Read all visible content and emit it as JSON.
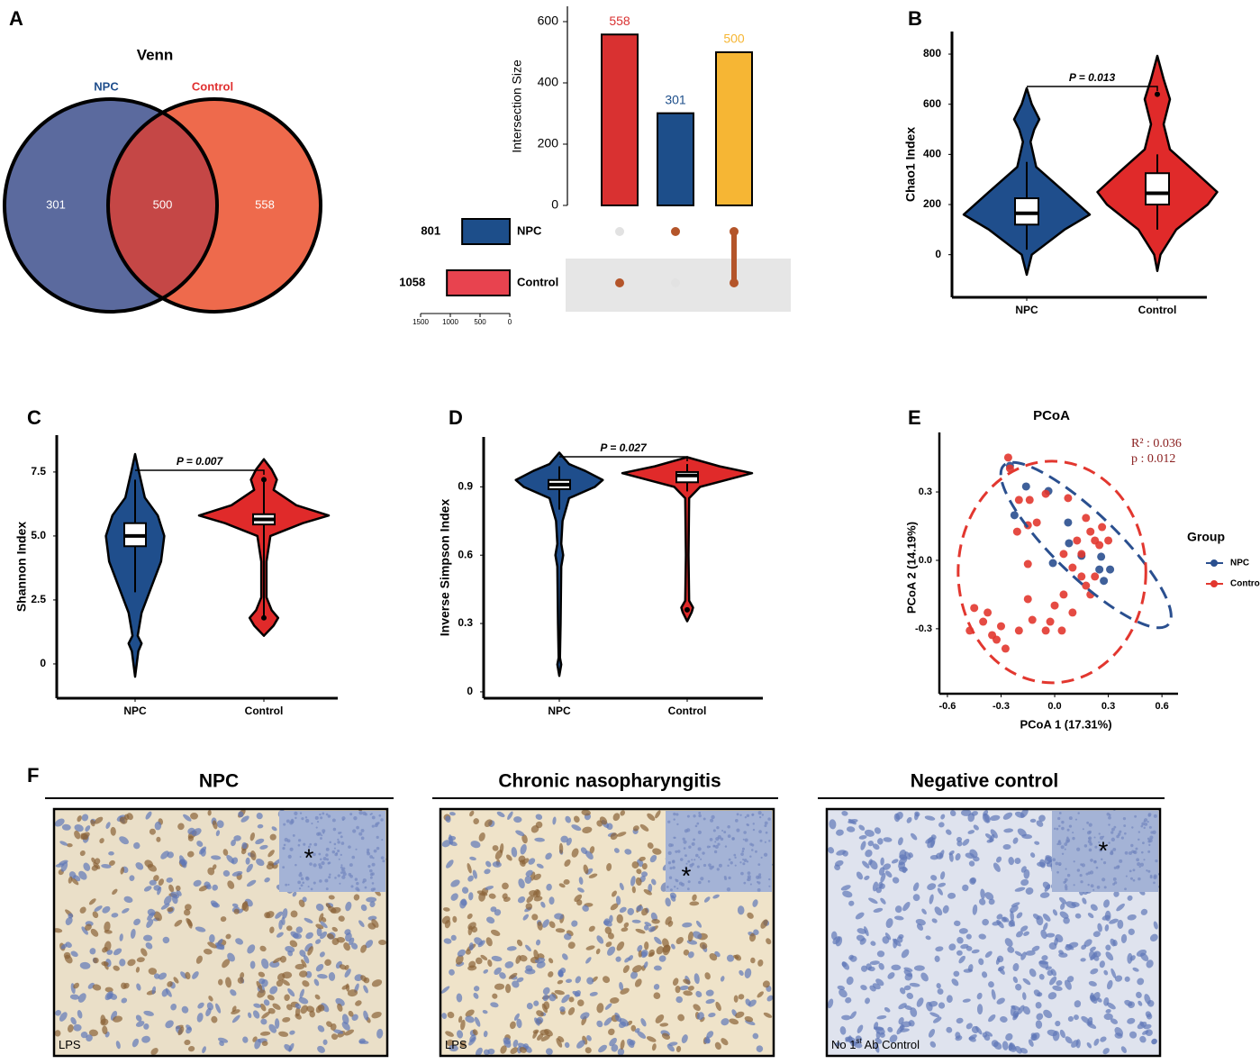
{
  "panel_labels": [
    "A",
    "B",
    "C",
    "D",
    "E",
    "F"
  ],
  "chart_data": [
    {
      "type": "venn",
      "title": "Venn",
      "sets": [
        {
          "name": "NPC",
          "color": "#5b6a9e",
          "label_color": "#1f4e8c",
          "only": 301
        },
        {
          "name": "Control",
          "color": "#ee6a4c",
          "label_color": "#e03030",
          "only": 558
        }
      ],
      "intersection": 500,
      "intersection_color": "#c54746"
    },
    {
      "type": "upset",
      "ylabel": "Intersection Size",
      "ylim": [
        0,
        650
      ],
      "yticks": [
        0,
        200,
        400,
        600
      ],
      "values": [
        558,
        301,
        500
      ],
      "colors": [
        "#d93131",
        "#1d4e8a",
        "#f6b634"
      ],
      "sets": [
        {
          "name": "NPC",
          "size": 801,
          "color": "#1d4e8a"
        },
        {
          "name": "Control",
          "size": 1058,
          "color": "#e8434f"
        }
      ],
      "matrix": [
        [
          false,
          true
        ],
        [
          true,
          false
        ],
        [
          true,
          true
        ]
      ],
      "dot_color": "#b4552a",
      "inactive_color": "#e2e2e2",
      "set_xlim": [
        1500,
        0
      ],
      "set_xticks": [
        1500,
        1000,
        500,
        0
      ]
    },
    {
      "type": "violin",
      "ylabel": "Chao1 Index",
      "ylim": [
        -170,
        890
      ],
      "yticks": [
        0,
        200,
        400,
        600,
        800
      ],
      "annotation": "P = 0.013",
      "groups": [
        {
          "name": "NPC",
          "color": "#1f4e8c",
          "density_y": [
            -80,
            0,
            100,
            160,
            250,
            350,
            450,
            500,
            540,
            600,
            664
          ],
          "density_w": [
            0,
            0.08,
            0.6,
            1,
            0.6,
            0.15,
            0.06,
            0.12,
            0.2,
            0.08,
            0
          ],
          "box": {
            "whisker_low": 20,
            "q1": 120,
            "median": 165,
            "q3": 225,
            "whisker_high": 370
          },
          "outliers": []
        },
        {
          "name": "Control",
          "color": "#e02a2a",
          "density_y": [
            -65,
            0,
            100,
            200,
            250,
            330,
            420,
            520,
            620,
            700,
            793
          ],
          "density_w": [
            0,
            0.05,
            0.3,
            0.8,
            0.95,
            0.6,
            0.2,
            0.1,
            0.2,
            0.1,
            0
          ],
          "box": {
            "whisker_low": 100,
            "q1": 200,
            "median": 245,
            "q3": 325,
            "whisker_high": 400
          },
          "outliers": [
            640
          ]
        }
      ]
    },
    {
      "type": "violin",
      "ylabel": "Shannon Index",
      "ylim": [
        -1.34,
        8.94
      ],
      "yticks": [
        0,
        2.5,
        {
          "value": 5,
          "label": "5.0"
        },
        7.5
      ],
      "annotation": "P = 0.007",
      "groups": [
        {
          "name": "NPC",
          "color": "#1f4e8c",
          "density_y": [
            -0.5,
            0.5,
            0.8,
            1.1,
            2,
            3,
            4,
            5,
            5.8,
            6.5,
            7.5,
            8.2
          ],
          "density_w": [
            0,
            0.05,
            0.1,
            0.04,
            0.1,
            0.25,
            0.4,
            0.45,
            0.35,
            0.15,
            0.06,
            0
          ],
          "box": {
            "whisker_low": 2.8,
            "q1": 4.6,
            "median": 5.0,
            "q3": 5.5,
            "whisker_high": 7.2
          },
          "outliers": []
        },
        {
          "name": "Control",
          "color": "#e02a2a",
          "density_y": [
            1.1,
            1.5,
            1.8,
            2.1,
            2.6,
            4,
            5,
            5.5,
            5.8,
            6.2,
            6.8,
            7.2,
            7.6,
            8.0
          ],
          "density_w": [
            0,
            0.15,
            0.22,
            0.12,
            0.04,
            0.04,
            0.1,
            0.6,
            1,
            0.5,
            0.15,
            0.2,
            0.12,
            0
          ],
          "box": {
            "whisker_low": 1.8,
            "q1": 5.45,
            "median": 5.65,
            "q3": 5.85,
            "whisker_high": 7.2
          },
          "outliers": [
            1.8,
            7.2
          ]
        }
      ]
    },
    {
      "type": "violin",
      "ylabel": "Inverse Simpson Index",
      "ylim": [
        -0.028,
        1.119
      ],
      "yticks": [
        0,
        0.3,
        0.6,
        0.9
      ],
      "annotation": "P = 0.027",
      "groups": [
        {
          "name": "NPC",
          "color": "#1f4e8c",
          "density_y": [
            0.07,
            0.12,
            0.15,
            0.3,
            0.55,
            0.6,
            0.65,
            0.75,
            0.85,
            0.9,
            0.93,
            0.97,
            1.0,
            1.05
          ],
          "density_w": [
            0,
            0.03,
            0.01,
            0.02,
            0.03,
            0.06,
            0.03,
            0.05,
            0.15,
            0.55,
            0.67,
            0.4,
            0.15,
            0
          ],
          "box": {
            "whisker_low": 0.8,
            "q1": 0.89,
            "median": 0.91,
            "q3": 0.93,
            "whisker_high": 0.99
          },
          "outliers": []
        },
        {
          "name": "Control",
          "color": "#e02a2a",
          "density_y": [
            0.31,
            0.35,
            0.37,
            0.4,
            0.6,
            0.85,
            0.9,
            0.93,
            0.96,
            0.99,
            1.03
          ],
          "density_w": [
            0,
            0.07,
            0.09,
            0.03,
            0.02,
            0.03,
            0.2,
            0.6,
            1,
            0.5,
            0
          ],
          "box": {
            "whisker_low": 0.88,
            "q1": 0.92,
            "median": 0.95,
            "q3": 0.965,
            "whisker_high": 1.0
          },
          "outliers": [
            0.36
          ]
        }
      ]
    },
    {
      "type": "scatter",
      "title": "PCoA",
      "xlabel": "PCoA 1 (17.31%)",
      "ylabel": "PCoA 2 (14.19%)",
      "xlim": [
        -0.645,
        0.69
      ],
      "ylim": [
        -0.585,
        0.561
      ],
      "xticks": [
        -0.6,
        -0.3,
        {
          "value": 0,
          "label": "0.0"
        },
        0.3,
        0.6
      ],
      "yticks": [
        -0.3,
        {
          "value": 0,
          "label": "0.0"
        },
        0.3
      ],
      "legend_title": "Group",
      "legend": "right",
      "annotations": [
        "R² : 0.036",
        "p : 0.012"
      ],
      "series": [
        {
          "name": "NPC",
          "color": "#2a4f8f",
          "x": [
            -0.25,
            -0.225,
            -0.16,
            -0.035,
            -0.01,
            0.08,
            0.15,
            0.26,
            0.275,
            0.25,
            0.31,
            0.075
          ],
          "y": [
            0.415,
            0.198,
            0.324,
            0.304,
            -0.012,
            0.075,
            0.02,
            0.016,
            -0.09,
            -0.04,
            -0.04,
            0.166
          ],
          "ellipse": {
            "cx": 0.175,
            "cy": 0.067,
            "rx": 0.64,
            "ry": 0.138,
            "angle": 44
          }
        },
        {
          "name": "Control",
          "color": "#e2372f",
          "x": [
            -0.26,
            -0.25,
            -0.2,
            -0.14,
            -0.1,
            -0.21,
            -0.15,
            -0.05,
            0.075,
            0.175,
            0.2,
            0.225,
            0.125,
            0.265,
            0.3,
            -0.15,
            0.05,
            0.1,
            0.15,
            0.175,
            0.225,
            0.2,
            0.05,
            0,
            -0.025,
            -0.05,
            -0.15,
            -0.125,
            -0.2,
            -0.3,
            -0.35,
            -0.4,
            -0.375,
            -0.325,
            -0.275,
            -0.45,
            -0.475,
            0.1,
            0.04,
            0.15,
            0.25
          ],
          "y": [
            0.451,
            0.403,
            0.265,
            0.265,
            0.166,
            0.126,
            0.154,
            0.292,
            0.273,
            0.186,
            0.126,
            0.087,
            0.087,
            0.146,
            0.087,
            -0.016,
            0.028,
            -0.032,
            -0.071,
            -0.111,
            -0.071,
            -0.15,
            -0.15,
            -0.198,
            -0.269,
            -0.308,
            -0.17,
            -0.261,
            -0.308,
            -0.289,
            -0.328,
            -0.269,
            -0.229,
            -0.348,
            -0.387,
            -0.209,
            -0.308,
            -0.229,
            -0.308,
            0.028,
            0.067
          ],
          "ellipse": {
            "cx": -0.015,
            "cy": -0.051,
            "rx": 0.525,
            "ry": 0.486,
            "angle": 0
          }
        }
      ]
    }
  ],
  "histology": {
    "panels": [
      {
        "title": "NPC",
        "corner": {
          "pre": "LPS"
        },
        "asterisk": "*"
      },
      {
        "title": "Chronic nasopharyngitis",
        "corner": {
          "pre": "LPS"
        },
        "asterisk": "*"
      },
      {
        "title": "Negative control",
        "corner": {
          "pre": "No 1",
          "sup": "st",
          "post": " Ab Control"
        },
        "asterisk": "*"
      }
    ]
  }
}
